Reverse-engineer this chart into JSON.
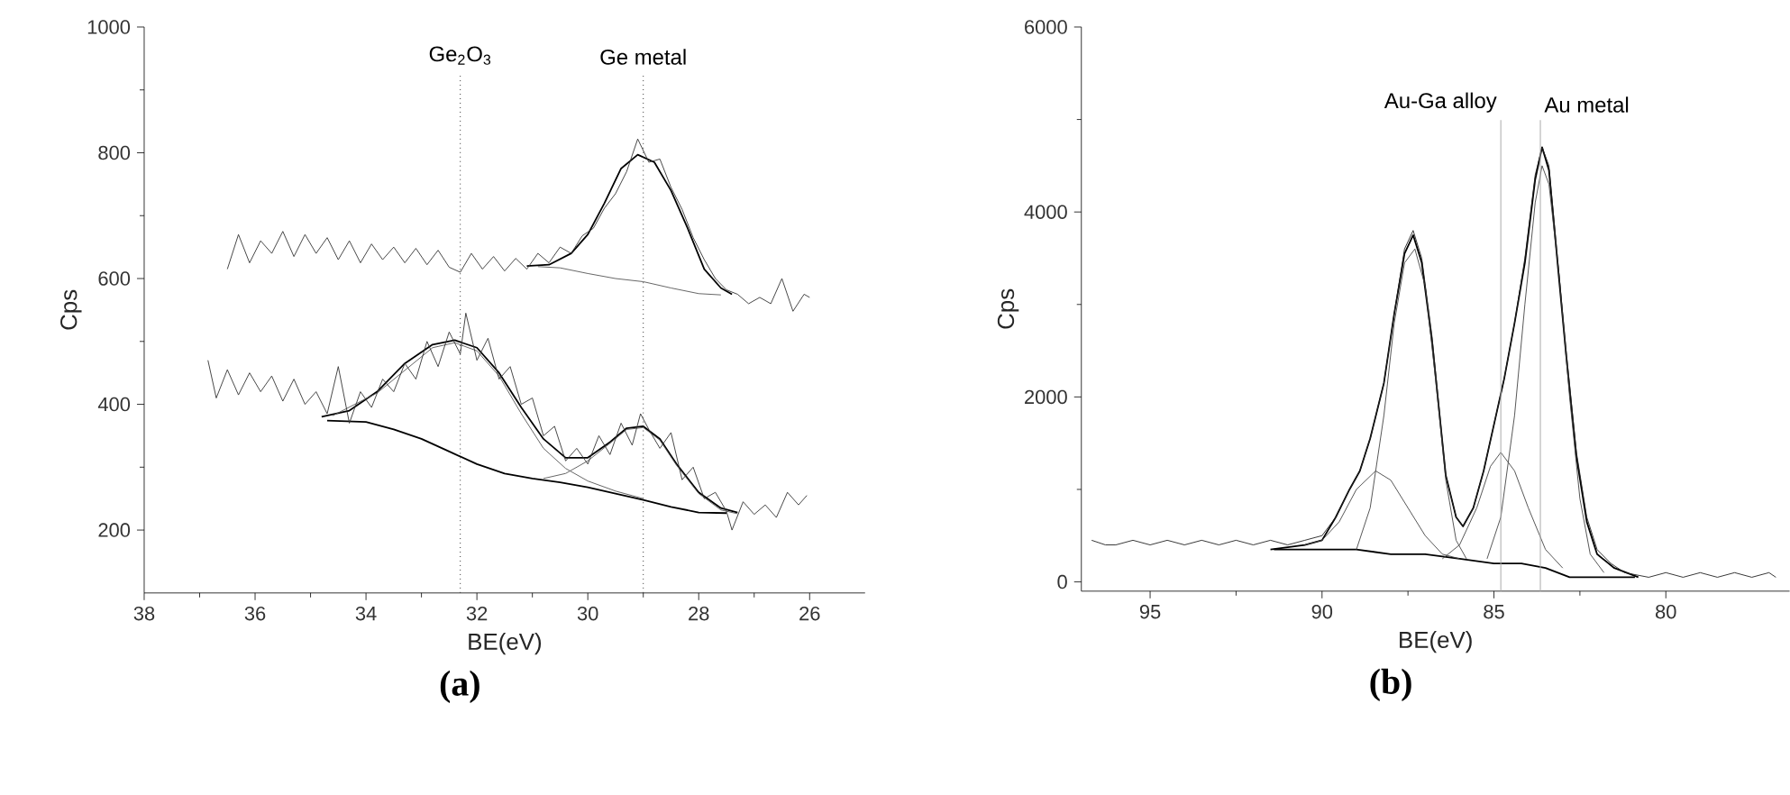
{
  "chart_data": [
    {
      "type": "line",
      "title": "(a)",
      "xlabel": "BE(eV)",
      "ylabel": "Cps",
      "xlim": [
        38,
        25
      ],
      "ylim": [
        100,
        1000
      ],
      "xticks": [
        38,
        36,
        34,
        32,
        30,
        28,
        26
      ],
      "yticks": [
        200,
        400,
        600,
        800,
        1000
      ],
      "ref_lines": [
        {
          "axis": "x",
          "value": 32.3,
          "label": "Ge$_{2}$O$_{3}$",
          "color": "#333333",
          "line_style": "dotted"
        },
        {
          "axis": "x",
          "value": 29.0,
          "label": "Ge metal",
          "color": "#333333",
          "line_style": "dotted"
        }
      ],
      "series": [
        {
          "color": "#000000",
          "x": [
            31.1,
            30.7,
            30.3,
            30.0,
            29.7,
            29.4,
            29.1,
            28.8,
            28.5,
            28.2,
            27.9,
            27.6,
            27.4
          ],
          "values": [
            620,
            622,
            640,
            670,
            720,
            775,
            797,
            785,
            740,
            680,
            615,
            585,
            575
          ]
        },
        {
          "color": "#555555",
          "x": [
            30.9,
            30.5,
            30.0,
            29.5,
            29.0,
            28.5,
            28.0,
            27.6
          ],
          "values": [
            619,
            617,
            608,
            600,
            595,
            585,
            576,
            574
          ]
        },
        {
          "color": "#000000",
          "x": [
            34.8,
            34.3,
            33.8,
            33.3,
            32.8,
            32.4,
            32.0,
            31.6,
            31.2,
            30.8,
            30.4,
            30.0,
            29.6,
            29.3,
            29.0,
            28.7,
            28.4,
            28.0,
            27.6,
            27.3
          ],
          "values": [
            380,
            390,
            420,
            465,
            495,
            502,
            490,
            450,
            395,
            345,
            315,
            315,
            340,
            362,
            365,
            345,
            305,
            260,
            235,
            228
          ]
        },
        {
          "color": "#000000",
          "x": [
            34.7,
            34.0,
            33.5,
            33.0,
            32.5,
            32.0,
            31.5,
            31.0,
            30.5,
            30.0,
            29.5,
            29.0,
            28.5,
            28.0,
            27.5
          ],
          "values": [
            374,
            372,
            360,
            345,
            325,
            305,
            290,
            282,
            276,
            268,
            258,
            248,
            237,
            228,
            227
          ]
        },
        {
          "color": "#555555",
          "x": [
            34.6,
            33.8,
            32.8,
            32.4,
            32.0,
            31.6,
            31.2,
            30.8,
            30.4,
            30.0,
            29.5,
            29.0
          ],
          "values": [
            382,
            418,
            490,
            498,
            485,
            445,
            385,
            330,
            298,
            278,
            262,
            250
          ]
        },
        {
          "color": "#555555",
          "x": [
            30.8,
            30.4,
            30.0,
            29.6,
            29.3,
            29.0,
            28.7,
            28.4,
            28.0,
            27.6,
            27.3
          ],
          "values": [
            282,
            290,
            310,
            338,
            360,
            363,
            343,
            303,
            258,
            232,
            226
          ]
        },
        {
          "color": "#333333",
          "x": [
            36.5,
            36.3,
            36.1,
            35.9,
            35.7,
            35.5,
            35.3,
            35.1,
            34.9,
            34.7,
            34.5,
            34.3,
            34.1,
            33.9,
            33.7,
            33.5,
            33.3,
            33.1,
            32.9,
            32.7,
            32.5,
            32.3,
            32.1,
            31.9,
            31.7,
            31.5,
            31.3,
            31.1,
            30.9,
            30.7,
            30.5,
            30.3,
            30.1,
            29.9,
            29.7,
            29.5,
            29.3,
            29.1,
            28.9,
            28.7,
            28.5,
            28.3,
            28.1,
            27.9,
            27.7,
            27.5,
            27.3,
            27.1,
            26.9,
            26.7,
            26.5,
            26.3,
            26.1,
            26.0
          ],
          "values": [
            615,
            670,
            625,
            660,
            640,
            675,
            635,
            670,
            640,
            665,
            630,
            660,
            625,
            655,
            630,
            650,
            625,
            648,
            622,
            645,
            618,
            610,
            640,
            615,
            635,
            612,
            632,
            615,
            640,
            625,
            650,
            640,
            668,
            680,
            712,
            735,
            770,
            822,
            785,
            790,
            745,
            710,
            665,
            630,
            600,
            582,
            575,
            560,
            570,
            560,
            600,
            548,
            575,
            570
          ]
        },
        {
          "color": "#333333",
          "x": [
            36.85,
            36.7,
            36.5,
            36.3,
            36.1,
            35.9,
            35.7,
            35.5,
            35.3,
            35.1,
            34.9,
            34.7,
            34.5,
            34.3,
            34.1,
            33.9,
            33.7,
            33.5,
            33.3,
            33.1,
            32.9,
            32.7,
            32.5,
            32.3,
            32.2,
            32.0,
            31.8,
            31.6,
            31.4,
            31.2,
            31.0,
            30.8,
            30.6,
            30.4,
            30.2,
            30.0,
            29.8,
            29.6,
            29.4,
            29.2,
            29.05,
            28.9,
            28.7,
            28.5,
            28.3,
            28.1,
            27.9,
            27.7,
            27.5,
            27.4,
            27.2,
            27.0,
            26.8,
            26.6,
            26.4,
            26.2,
            26.05
          ],
          "values": [
            470,
            410,
            455,
            415,
            450,
            420,
            445,
            405,
            440,
            400,
            420,
            385,
            460,
            370,
            420,
            395,
            440,
            420,
            465,
            440,
            500,
            460,
            515,
            480,
            545,
            470,
            505,
            440,
            460,
            400,
            410,
            350,
            365,
            310,
            330,
            305,
            350,
            320,
            370,
            335,
            385,
            360,
            330,
            355,
            280,
            300,
            250,
            260,
            230,
            200,
            245,
            225,
            240,
            220,
            260,
            240,
            255
          ]
        }
      ]
    },
    {
      "type": "line",
      "title": "(b)",
      "xlabel": "BE(eV)",
      "ylabel": "Cps",
      "xlim": [
        97,
        76.4
      ],
      "ylim": [
        -100,
        6000
      ],
      "xticks": [
        95,
        90,
        85,
        80
      ],
      "yticks": [
        0,
        2000,
        4000,
        6000
      ],
      "ref_lines": [
        {
          "axis": "x",
          "value": 84.8,
          "label": "Au-Ga alloy",
          "color": "#aaaaaa",
          "line_style": "solid"
        },
        {
          "axis": "x",
          "value": 83.65,
          "label": "Au metal",
          "color": "#aaaaaa",
          "line_style": "solid"
        }
      ],
      "series": [
        {
          "color": "#000000",
          "x": [
            91.5,
            90.5,
            90.0,
            89.6,
            89.2,
            88.9,
            88.6,
            88.2,
            87.9,
            87.6,
            87.35,
            87.1,
            86.8,
            86.4,
            86.1,
            85.9,
            85.6,
            85.3,
            85.0,
            84.7,
            84.4,
            84.1,
            83.8,
            83.6,
            83.4,
            83.2,
            82.9,
            82.6,
            82.3,
            82.0,
            81.5,
            80.8
          ],
          "values": [
            350,
            400,
            450,
            700,
            1000,
            1200,
            1550,
            2150,
            2900,
            3550,
            3750,
            3450,
            2600,
            1150,
            700,
            600,
            800,
            1200,
            1700,
            2200,
            2800,
            3450,
            4350,
            4700,
            4450,
            3650,
            2450,
            1350,
            650,
            300,
            150,
            50
          ]
        },
        {
          "color": "#000000",
          "x": [
            91.4,
            90.0,
            89.0,
            88.0,
            87.0,
            86.0,
            85.0,
            84.2,
            83.5,
            82.8,
            82.0,
            80.9
          ],
          "values": [
            350,
            350,
            350,
            300,
            300,
            250,
            200,
            200,
            150,
            50,
            50,
            50
          ]
        },
        {
          "color": "#444444",
          "x": [
            90.5,
            90.0,
            89.5,
            89.0,
            88.44,
            88.0,
            87.5,
            87.0,
            86.5,
            86.0
          ],
          "values": [
            400,
            450,
            650,
            1000,
            1200,
            1100,
            800,
            500,
            300,
            250
          ]
        },
        {
          "color": "#444444",
          "x": [
            89.0,
            88.6,
            88.2,
            87.9,
            87.6,
            87.3,
            87.0,
            86.7,
            86.4,
            86.1,
            85.8
          ],
          "values": [
            350,
            800,
            1800,
            2800,
            3450,
            3600,
            3200,
            2200,
            1100,
            450,
            250
          ]
        },
        {
          "color": "#444444",
          "x": [
            86.5,
            86.0,
            85.5,
            85.1,
            84.8,
            84.4,
            84.0,
            83.5,
            83.0
          ],
          "values": [
            250,
            400,
            800,
            1250,
            1400,
            1200,
            800,
            350,
            150
          ]
        },
        {
          "color": "#444444",
          "x": [
            85.2,
            84.8,
            84.4,
            84.1,
            83.8,
            83.6,
            83.4,
            83.1,
            82.8,
            82.5,
            82.2,
            81.8
          ],
          "values": [
            250,
            700,
            1800,
            3000,
            4100,
            4500,
            4300,
            3300,
            2000,
            900,
            300,
            100
          ]
        },
        {
          "color": "#222222",
          "x": [
            96.7,
            96.3,
            96.0,
            95.5,
            95.0,
            94.5,
            94.0,
            93.5,
            93.0,
            92.5,
            92.0,
            91.5,
            91.0,
            90.5,
            90.0,
            89.6,
            89.2,
            88.9,
            88.6,
            88.2,
            87.9,
            87.6,
            87.35,
            87.1,
            86.8,
            86.4,
            86.1,
            85.9,
            85.6,
            85.3,
            85.0,
            84.7,
            84.4,
            84.1,
            83.8,
            83.6,
            83.4,
            83.2,
            82.9,
            82.6,
            82.3,
            82.0,
            81.6,
            81.2,
            80.5,
            80.0,
            79.5,
            79.0,
            78.5,
            78.0,
            77.5,
            77.0,
            76.8
          ],
          "values": [
            450,
            400,
            400,
            450,
            400,
            450,
            400,
            450,
            400,
            450,
            400,
            450,
            400,
            450,
            500,
            700,
            1000,
            1200,
            1550,
            2150,
            2900,
            3600,
            3800,
            3500,
            2650,
            1150,
            700,
            600,
            800,
            1200,
            1700,
            2200,
            2800,
            3500,
            4400,
            4700,
            4500,
            3700,
            2500,
            1400,
            700,
            350,
            200,
            100,
            50,
            100,
            50,
            100,
            50,
            100,
            50,
            100,
            50
          ]
        }
      ]
    }
  ]
}
